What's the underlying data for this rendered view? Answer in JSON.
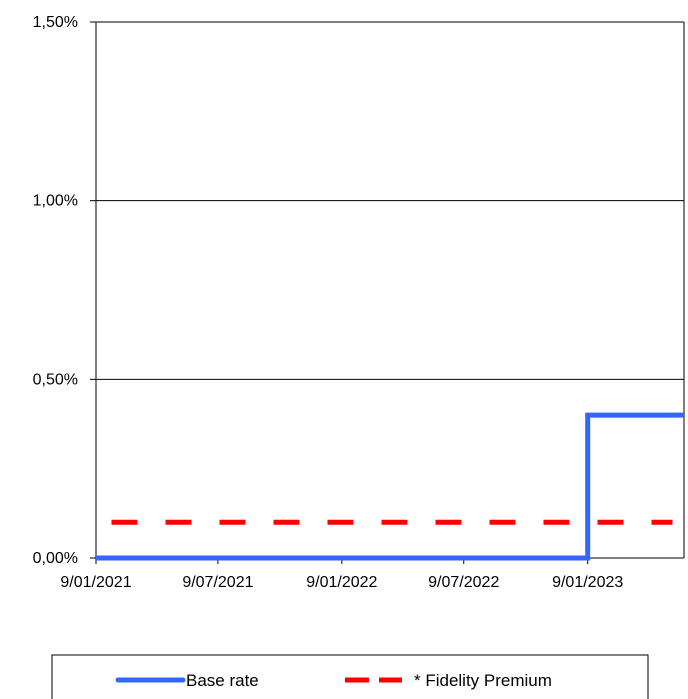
{
  "chart_data": {
    "type": "line",
    "y_tick_labels": [
      "0,00%",
      "0,50%",
      "1,00%",
      "1,50%"
    ],
    "y_ticks": [
      0,
      0.5,
      1.0,
      1.5
    ],
    "ylim": [
      0,
      1.5
    ],
    "x_tick_labels": [
      "9/01/2021",
      "9/07/2021",
      "9/01/2022",
      "9/07/2022",
      "9/01/2023"
    ],
    "x_ticks": [
      "2021-01-09",
      "2021-07-09",
      "2022-01-09",
      "2022-07-09",
      "2023-01-09"
    ],
    "xlim": [
      "2021-01-09",
      "2023-06-01"
    ],
    "grid": "horizontal",
    "legend_position": "bottom",
    "series": [
      {
        "name": "Base rate",
        "color": "#3366ff",
        "style": "solid",
        "step": true,
        "points": [
          {
            "x": "2021-01-09",
            "y": 0.0
          },
          {
            "x": "2023-01-09",
            "y": 0.0
          },
          {
            "x": "2023-01-09",
            "y": 0.4
          },
          {
            "x": "2023-06-01",
            "y": 0.4
          }
        ]
      },
      {
        "name": "* Fidelity Premium",
        "color": "#ff0000",
        "style": "dashed",
        "step": false,
        "points": [
          {
            "x": "2021-02-01",
            "y": 0.1
          },
          {
            "x": "2023-05-15",
            "y": 0.1
          }
        ]
      }
    ]
  }
}
